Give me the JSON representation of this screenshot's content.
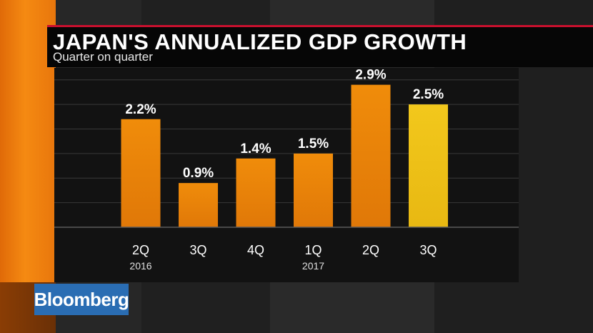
{
  "header": {
    "title": "JAPAN'S ANNUALIZED GDP GROWTH",
    "subtitle": "Quarter on quarter"
  },
  "brand": {
    "label": "Bloomberg",
    "color": "#2a6db3"
  },
  "colors": {
    "accent_red": "#c8102e",
    "bar_orange": "#f08c0a",
    "bar_highlight": "#f2c81c"
  },
  "chart_data": {
    "type": "bar",
    "title": "JAPAN'S ANNUALIZED GDP GROWTH",
    "subtitle": "Quarter on quarter",
    "categories": [
      "2Q",
      "3Q",
      "4Q",
      "1Q",
      "2Q",
      "3Q"
    ],
    "year_labels": [
      "2016",
      "",
      "",
      "2017",
      "",
      ""
    ],
    "values": [
      2.2,
      0.9,
      1.4,
      1.5,
      2.9,
      2.5
    ],
    "value_labels": [
      "2.2%",
      "0.9%",
      "1.4%",
      "1.5%",
      "2.9%",
      "2.5%"
    ],
    "highlight_index": 5,
    "ylim": [
      0,
      3.2
    ],
    "grid": true,
    "xlabel": "",
    "ylabel": ""
  }
}
